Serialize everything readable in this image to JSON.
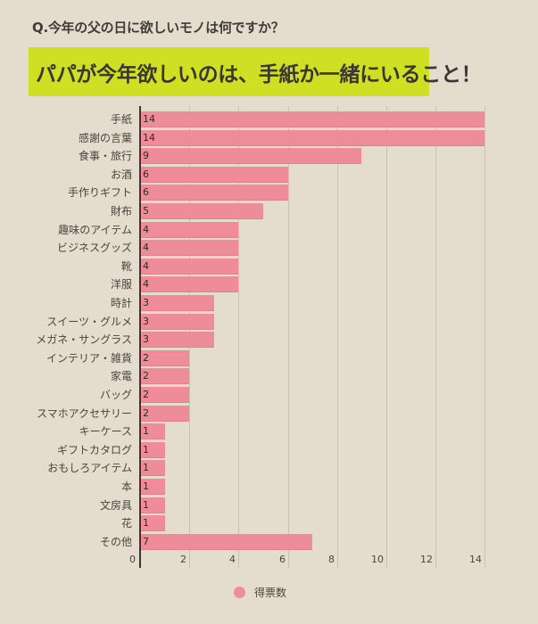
{
  "question": "Q.今年の父の日に欲しいモノは何ですか？",
  "banner": "パパが今年欲しいのは、手紙か一緒にいること！",
  "colors": {
    "background": "#e4dccd",
    "banner": "#cfe024",
    "bar": "#ef8c99"
  },
  "legend": {
    "label": "得票数"
  },
  "ticks": [
    "0",
    "2",
    "4",
    "6",
    "8",
    "10",
    "12",
    "14"
  ],
  "rows": [
    {
      "label": "手紙",
      "value": "14"
    },
    {
      "label": "感謝の言葉",
      "value": "14"
    },
    {
      "label": "食事・旅行",
      "value": "9"
    },
    {
      "label": "お酒",
      "value": "6"
    },
    {
      "label": "手作りギフト",
      "value": "6"
    },
    {
      "label": "財布",
      "value": "5"
    },
    {
      "label": "趣味のアイテム",
      "value": "4"
    },
    {
      "label": "ビジネスグッズ",
      "value": "4"
    },
    {
      "label": "靴",
      "value": "4"
    },
    {
      "label": "洋服",
      "value": "4"
    },
    {
      "label": "時計",
      "value": "3"
    },
    {
      "label": "スイーツ・グルメ",
      "value": "3"
    },
    {
      "label": "メガネ・サングラス",
      "value": "3"
    },
    {
      "label": "インテリア・雑貨",
      "value": "2"
    },
    {
      "label": "家電",
      "value": "2"
    },
    {
      "label": "バッグ",
      "value": "2"
    },
    {
      "label": "スマホアクセサリー",
      "value": "2"
    },
    {
      "label": "キーケース",
      "value": "1"
    },
    {
      "label": "ギフトカタログ",
      "value": "1"
    },
    {
      "label": "おもしろアイテム",
      "value": "1"
    },
    {
      "label": "本",
      "value": "1"
    },
    {
      "label": "文房具",
      "value": "1"
    },
    {
      "label": "花",
      "value": "1"
    },
    {
      "label": "その他",
      "value": "7"
    }
  ],
  "chart_data": {
    "type": "bar",
    "orientation": "horizontal",
    "title": "Q.今年の父の日に欲しいモノは何ですか？",
    "subtitle": "パパが今年欲しいのは、手紙か一緒にいること！",
    "categories": [
      "手紙",
      "感謝の言葉",
      "食事・旅行",
      "お酒",
      "手作りギフト",
      "財布",
      "趣味のアイテム",
      "ビジネスグッズ",
      "靴",
      "洋服",
      "時計",
      "スイーツ・グルメ",
      "メガネ・サングラス",
      "インテリア・雑貨",
      "家電",
      "バッグ",
      "スマホアクセサリー",
      "キーケース",
      "ギフトカタログ",
      "おもしろアイテム",
      "本",
      "文房具",
      "花",
      "その他"
    ],
    "series": [
      {
        "name": "得票数",
        "values": [
          14,
          14,
          9,
          6,
          6,
          5,
          4,
          4,
          4,
          4,
          3,
          3,
          3,
          2,
          2,
          2,
          2,
          1,
          1,
          1,
          1,
          1,
          1,
          7
        ]
      }
    ],
    "xlabel": "",
    "ylabel": "",
    "xlim": [
      0,
      14
    ],
    "xticks": [
      0,
      2,
      4,
      6,
      8,
      10,
      12,
      14
    ],
    "grid": true,
    "legend_position": "bottom",
    "data_labels": true
  }
}
